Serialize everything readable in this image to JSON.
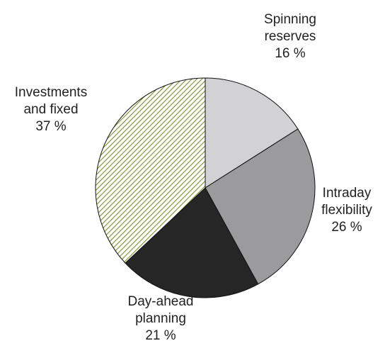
{
  "chart_data": {
    "type": "pie",
    "categories": [
      "Spinning reserves",
      "Intraday flexibility",
      "Day-ahead planning",
      "Investments and fixed"
    ],
    "values": [
      16,
      26,
      21,
      37
    ],
    "value_labels": [
      "16 %",
      "26 %",
      "21 %",
      "37 %"
    ],
    "colors": [
      "#d2d2d4",
      "#9b9b9d",
      "#262626",
      "#7d8c2a"
    ],
    "hatch": [
      false,
      false,
      false,
      true
    ]
  }
}
